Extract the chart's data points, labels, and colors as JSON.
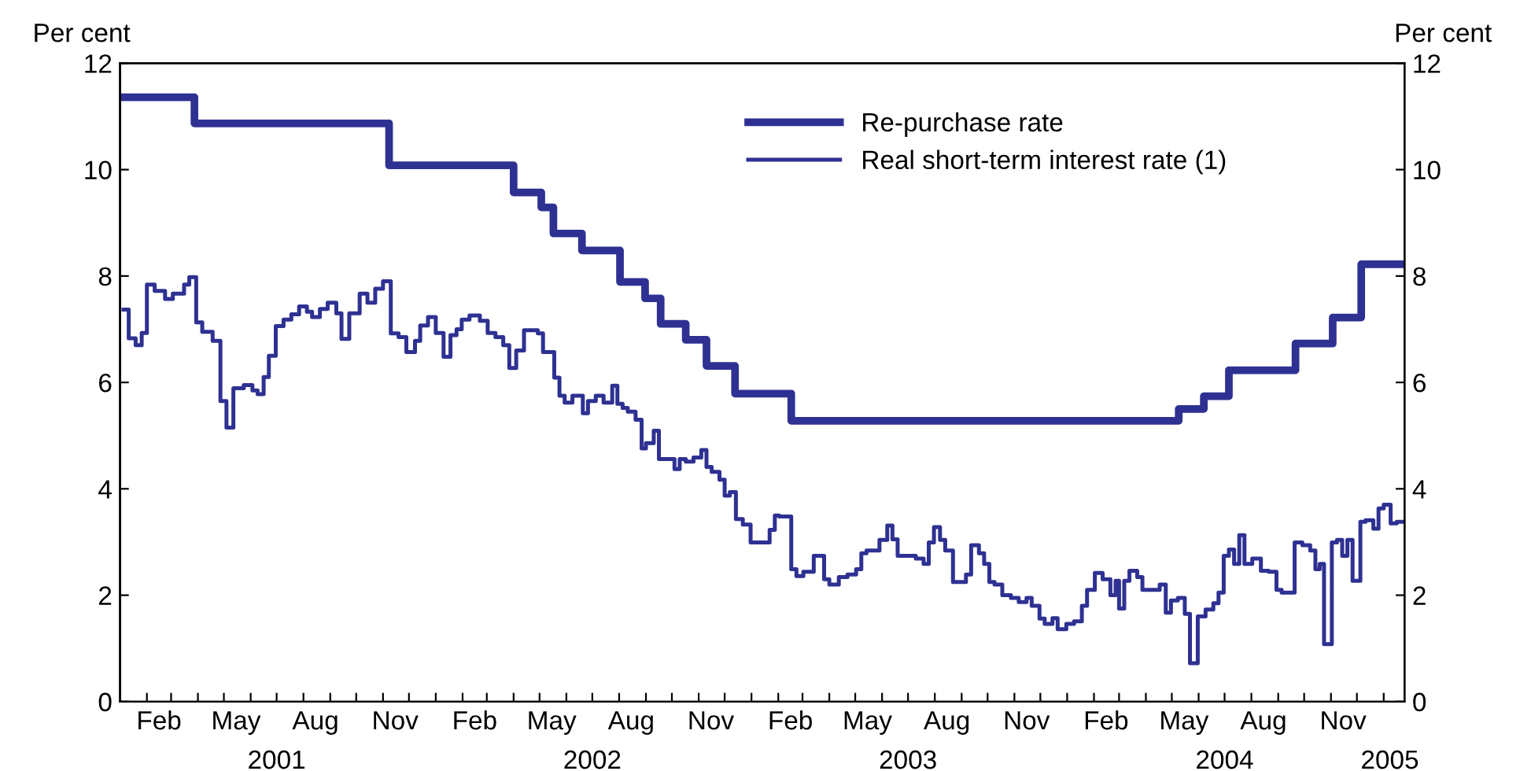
{
  "chart_data": {
    "type": "step",
    "ylabel": "Per cent",
    "y2label": "Per cent",
    "xlim": [
      "2001-01-01",
      "2005-01-25"
    ],
    "xticks": [
      {
        "value": "2001-02-15",
        "label": "Feb"
      },
      {
        "value": "2001-05-15",
        "label": "May"
      },
      {
        "value": "2001-08-15",
        "label": "Aug"
      },
      {
        "value": "2001-11-15",
        "label": "Nov"
      },
      {
        "value": "2002-02-15",
        "label": "Feb"
      },
      {
        "value": "2002-05-15",
        "label": "May"
      },
      {
        "value": "2002-08-15",
        "label": "Aug"
      },
      {
        "value": "2002-11-15",
        "label": "Nov"
      },
      {
        "value": "2003-02-15",
        "label": "Feb"
      },
      {
        "value": "2003-05-15",
        "label": "May"
      },
      {
        "value": "2003-08-15",
        "label": "Aug"
      },
      {
        "value": "2003-11-15",
        "label": "Nov"
      },
      {
        "value": "2004-02-15",
        "label": "Feb"
      },
      {
        "value": "2004-05-15",
        "label": "May"
      },
      {
        "value": "2004-08-15",
        "label": "Aug"
      },
      {
        "value": "2004-11-15",
        "label": "Nov"
      },
      {
        "value": "2001-02-01",
        "label": null
      },
      {
        "value": "2001-03-01",
        "label": null
      },
      {
        "value": "2001-04-01",
        "label": null
      },
      {
        "value": "2001-05-01",
        "label": null
      },
      {
        "value": "2001-06-01",
        "label": null
      },
      {
        "value": "2001-07-01",
        "label": null
      },
      {
        "value": "2001-08-01",
        "label": null
      },
      {
        "value": "2001-09-01",
        "label": null
      },
      {
        "value": "2001-10-01",
        "label": null
      },
      {
        "value": "2001-11-01",
        "label": null
      },
      {
        "value": "2001-12-01",
        "label": null
      },
      {
        "value": "2002-01-01",
        "label": null
      },
      {
        "value": "2002-02-01",
        "label": null
      },
      {
        "value": "2002-03-01",
        "label": null
      },
      {
        "value": "2002-04-01",
        "label": null
      },
      {
        "value": "2002-05-01",
        "label": null
      },
      {
        "value": "2002-06-01",
        "label": null
      },
      {
        "value": "2002-07-01",
        "label": null
      },
      {
        "value": "2002-08-01",
        "label": null
      },
      {
        "value": "2002-09-01",
        "label": null
      },
      {
        "value": "2002-10-01",
        "label": null
      },
      {
        "value": "2002-11-01",
        "label": null
      },
      {
        "value": "2002-12-01",
        "label": null
      },
      {
        "value": "2003-01-01",
        "label": null
      },
      {
        "value": "2003-02-01",
        "label": null
      },
      {
        "value": "2003-03-01",
        "label": null
      },
      {
        "value": "2003-04-01",
        "label": null
      },
      {
        "value": "2003-05-01",
        "label": null
      },
      {
        "value": "2003-06-01",
        "label": null
      },
      {
        "value": "2003-07-01",
        "label": null
      },
      {
        "value": "2003-08-01",
        "label": null
      },
      {
        "value": "2003-09-01",
        "label": null
      },
      {
        "value": "2003-10-01",
        "label": null
      },
      {
        "value": "2003-11-01",
        "label": null
      },
      {
        "value": "2003-12-01",
        "label": null
      },
      {
        "value": "2004-01-01",
        "label": null
      },
      {
        "value": "2004-02-01",
        "label": null
      },
      {
        "value": "2004-03-01",
        "label": null
      },
      {
        "value": "2004-04-01",
        "label": null
      },
      {
        "value": "2004-05-01",
        "label": null
      },
      {
        "value": "2004-06-01",
        "label": null
      },
      {
        "value": "2004-07-01",
        "label": null
      },
      {
        "value": "2004-08-01",
        "label": null
      },
      {
        "value": "2004-09-01",
        "label": null
      },
      {
        "value": "2004-10-01",
        "label": null
      },
      {
        "value": "2004-11-01",
        "label": null
      },
      {
        "value": "2004-12-01",
        "label": null
      },
      {
        "value": "2005-01-01",
        "label": null
      }
    ],
    "x2lim": [
      "2001-01-01",
      "2005-01-25"
    ],
    "x2ticks": [
      {
        "value": "2001-07-01",
        "label": "2001"
      },
      {
        "value": "2002-07-01",
        "label": "2002"
      },
      {
        "value": "2003-07-01",
        "label": "2003"
      },
      {
        "value": "2004-07-01",
        "label": "2004"
      },
      {
        "value": "2005-01-08",
        "label": "2005"
      }
    ],
    "ylim": [
      0,
      12
    ],
    "yticks": [
      0,
      2,
      4,
      6,
      8,
      10,
      12
    ],
    "y2lim": [
      0,
      12
    ],
    "y2ticks": [
      0,
      2,
      4,
      6,
      8,
      10,
      12
    ],
    "grid": false,
    "legend": "top right",
    "series": [
      {
        "name": "Re-purchase rate",
        "color": "#2e3192",
        "x": [
          "2001-01-04",
          "2001-03-28",
          "2001-11-08",
          "2002-04-01",
          "2002-05-03",
          "2002-05-17",
          "2002-06-19",
          "2002-08-02",
          "2002-08-31",
          "2002-09-18",
          "2002-10-17",
          "2002-11-10",
          "2002-12-13",
          "2003-02-16",
          "2004-05-09",
          "2004-06-07",
          "2004-07-06",
          "2004-09-21",
          "2004-11-03",
          "2004-12-06",
          "2005-01-23"
        ],
        "values": [
          11.36,
          10.87,
          10.08,
          9.57,
          9.29,
          8.8,
          8.48,
          7.89,
          7.58,
          7.1,
          6.8,
          6.31,
          5.79,
          5.28,
          5.5,
          5.74,
          6.23,
          6.73,
          7.22,
          8.22,
          8.22
        ]
      },
      {
        "name": "Real short-term interest rate (1)",
        "color": "#2e3192",
        "x": [
          "2001-01-05",
          "2001-01-11",
          "2001-01-19",
          "2001-01-26",
          "2001-02-01",
          "2001-02-10",
          "2001-02-22",
          "2001-03-03",
          "2001-03-16",
          "2001-03-22",
          "2001-03-30",
          "2001-04-06",
          "2001-04-18",
          "2001-04-27",
          "2001-05-04",
          "2001-05-12",
          "2001-05-24",
          "2001-06-03",
          "2001-06-09",
          "2001-06-16",
          "2001-06-22",
          "2001-06-30",
          "2001-07-09",
          "2001-07-18",
          "2001-07-27",
          "2001-08-05",
          "2001-08-11",
          "2001-08-20",
          "2001-08-29",
          "2001-09-08",
          "2001-09-14",
          "2001-09-23",
          "2001-10-05",
          "2001-10-14",
          "2001-10-23",
          "2001-11-01",
          "2001-11-10",
          "2001-11-19",
          "2001-11-28",
          "2001-12-08",
          "2001-12-14",
          "2001-12-23",
          "2002-01-01",
          "2002-01-10",
          "2002-01-18",
          "2002-01-25",
          "2002-01-31",
          "2002-02-09",
          "2002-02-21",
          "2002-03-02",
          "2002-03-11",
          "2002-03-20",
          "2002-03-27",
          "2002-04-04",
          "2002-04-13",
          "2002-04-29",
          "2002-05-05",
          "2002-05-18",
          "2002-05-24",
          "2002-05-30",
          "2002-06-08",
          "2002-06-20",
          "2002-06-26",
          "2002-07-05",
          "2002-07-14",
          "2002-07-24",
          "2002-07-30",
          "2002-08-05",
          "2002-08-11",
          "2002-08-20",
          "2002-08-27",
          "2002-09-01",
          "2002-09-10",
          "2002-09-16",
          "2002-10-04",
          "2002-10-10",
          "2002-10-17",
          "2002-10-26",
          "2002-11-04",
          "2002-11-10",
          "2002-11-16",
          "2002-11-25",
          "2002-12-01",
          "2002-12-07",
          "2002-12-14",
          "2002-12-22",
          "2002-12-31",
          "2003-01-22",
          "2003-01-28",
          "2003-02-02",
          "2003-02-16",
          "2003-02-22",
          "2003-03-02",
          "2003-03-14",
          "2003-03-26",
          "2003-04-01",
          "2003-04-12",
          "2003-04-22",
          "2003-05-02",
          "2003-05-08",
          "2003-05-14",
          "2003-05-29",
          "2003-06-07",
          "2003-06-13",
          "2003-06-19",
          "2003-07-10",
          "2003-07-19",
          "2003-07-25",
          "2003-07-31",
          "2003-08-07",
          "2003-08-13",
          "2003-08-22",
          "2003-09-06",
          "2003-09-12",
          "2003-09-21",
          "2003-09-27",
          "2003-10-03",
          "2003-10-09",
          "2003-10-18",
          "2003-10-28",
          "2003-11-06",
          "2003-11-15",
          "2003-11-21",
          "2003-11-30",
          "2003-12-06",
          "2003-12-15",
          "2003-12-21",
          "2003-12-31",
          "2004-01-09",
          "2004-01-18",
          "2004-01-24",
          "2004-02-02",
          "2004-02-11",
          "2004-02-20",
          "2004-02-26",
          "2004-03-01",
          "2004-03-07",
          "2004-03-13",
          "2004-03-22",
          "2004-03-28",
          "2004-04-17",
          "2004-04-24",
          "2004-04-30",
          "2004-05-08",
          "2004-05-16",
          "2004-05-22",
          "2004-05-31",
          "2004-06-09",
          "2004-06-18",
          "2004-06-24",
          "2004-06-30",
          "2004-07-06",
          "2004-07-12",
          "2004-07-18",
          "2004-07-24",
          "2004-08-02",
          "2004-08-12",
          "2004-08-21",
          "2004-08-30",
          "2004-09-05",
          "2004-09-20",
          "2004-09-29",
          "2004-10-08",
          "2004-10-14",
          "2004-10-19",
          "2004-10-24",
          "2004-11-02",
          "2004-11-08",
          "2004-11-14",
          "2004-11-20",
          "2004-11-26",
          "2004-12-05",
          "2004-12-11",
          "2004-12-20",
          "2004-12-26",
          "2005-01-01",
          "2005-01-09",
          "2005-01-16",
          "2005-01-24"
        ],
        "values": [
          7.37,
          6.83,
          6.7,
          6.93,
          7.84,
          7.72,
          7.57,
          7.67,
          7.84,
          7.98,
          7.13,
          6.95,
          6.78,
          5.65,
          5.15,
          5.89,
          5.95,
          5.85,
          5.78,
          6.1,
          6.5,
          7.06,
          7.18,
          7.28,
          7.43,
          7.33,
          7.23,
          7.38,
          7.5,
          7.3,
          6.82,
          7.3,
          7.67,
          7.5,
          7.76,
          7.9,
          6.92,
          6.85,
          6.57,
          6.78,
          7.07,
          7.23,
          6.93,
          6.48,
          6.89,
          7.0,
          7.18,
          7.26,
          7.16,
          6.93,
          6.85,
          6.7,
          6.27,
          6.6,
          6.98,
          6.92,
          6.57,
          6.09,
          5.75,
          5.62,
          5.75,
          5.42,
          5.65,
          5.75,
          5.62,
          5.94,
          5.6,
          5.52,
          5.45,
          5.3,
          4.76,
          4.86,
          5.09,
          4.56,
          4.37,
          4.56,
          4.51,
          4.59,
          4.73,
          4.41,
          4.32,
          4.17,
          3.87,
          3.94,
          3.43,
          3.33,
          2.99,
          3.23,
          3.5,
          3.48,
          2.49,
          2.36,
          2.44,
          2.74,
          2.3,
          2.2,
          2.34,
          2.39,
          2.49,
          2.79,
          2.84,
          3.04,
          3.31,
          3.05,
          2.74,
          2.69,
          2.59,
          2.99,
          3.28,
          3.04,
          2.84,
          2.25,
          2.39,
          2.94,
          2.79,
          2.59,
          2.25,
          2.2,
          2.0,
          1.95,
          1.87,
          1.95,
          1.8,
          1.56,
          1.46,
          1.57,
          1.36,
          1.46,
          1.51,
          1.8,
          2.1,
          2.42,
          2.3,
          2.0,
          2.27,
          1.75,
          2.27,
          2.46,
          2.34,
          2.1,
          2.2,
          1.67,
          1.9,
          1.95,
          1.65,
          0.72,
          1.6,
          1.73,
          1.85,
          2.05,
          2.74,
          2.86,
          2.59,
          3.13,
          2.59,
          2.69,
          2.46,
          2.44,
          2.1,
          2.05,
          2.99,
          2.94,
          2.84,
          2.49,
          2.59,
          1.08,
          2.99,
          3.04,
          2.74,
          3.04,
          2.27,
          3.38,
          3.41,
          3.25,
          3.63,
          3.7,
          3.35,
          3.38,
          3.38
        ]
      }
    ]
  }
}
